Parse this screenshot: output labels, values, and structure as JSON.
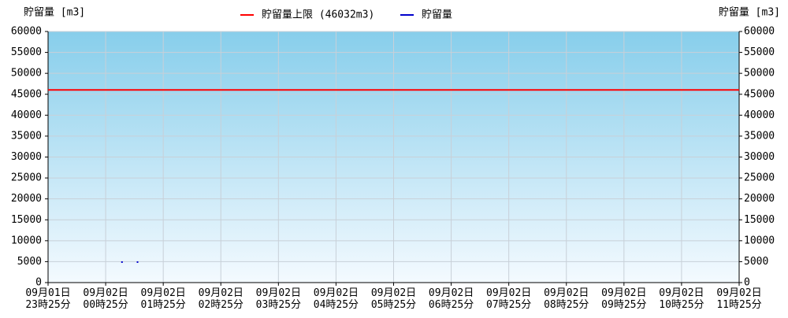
{
  "chart_data": {
    "type": "line",
    "y_label": "貯留量 [m3]",
    "y2_label": "貯留量 [m3]",
    "xlim": [
      23.41667,
      35.41667
    ],
    "xticks": [
      {
        "value": 23.41667,
        "label": "09月01日\n23時25分"
      },
      {
        "value": 24.41667,
        "label": "09月02日\n00時25分"
      },
      {
        "value": 25.41667,
        "label": "09月02日\n01時25分"
      },
      {
        "value": 26.41667,
        "label": "09月02日\n02時25分"
      },
      {
        "value": 27.41667,
        "label": "09月02日\n03時25分"
      },
      {
        "value": 28.41667,
        "label": "09月02日\n04時25分"
      },
      {
        "value": 29.41667,
        "label": "09月02日\n05時25分"
      },
      {
        "value": 30.41667,
        "label": "09月02日\n06時25分"
      },
      {
        "value": 31.41667,
        "label": "09月02日\n07時25分"
      },
      {
        "value": 32.41667,
        "label": "09月02日\n08時25分"
      },
      {
        "value": 33.41667,
        "label": "09月02日\n09時25分"
      },
      {
        "value": 34.41667,
        "label": "09月02日\n10時25分"
      },
      {
        "value": 35.41667,
        "label": "09月02日\n11時25分"
      }
    ],
    "ylim": [
      0,
      60000
    ],
    "yticks": [
      0,
      5000,
      10000,
      15000,
      20000,
      25000,
      30000,
      35000,
      40000,
      45000,
      50000,
      55000,
      60000
    ],
    "y2lim": [
      0,
      60000
    ],
    "y2ticks": [
      0,
      5000,
      10000,
      15000,
      20000,
      25000,
      30000,
      35000,
      40000,
      45000,
      50000,
      55000,
      60000
    ],
    "grid": true,
    "series": [
      {
        "name": "貯留量上限 (46032m3)",
        "color": "#ff0000",
        "x": [
          23.41667,
          35.41667
        ],
        "values": [
          46032,
          46032
        ]
      },
      {
        "name": "貯留量",
        "color": "#0000cc",
        "x": [
          24.7,
          24.97
        ],
        "values": [
          4900,
          4900
        ]
      }
    ]
  }
}
